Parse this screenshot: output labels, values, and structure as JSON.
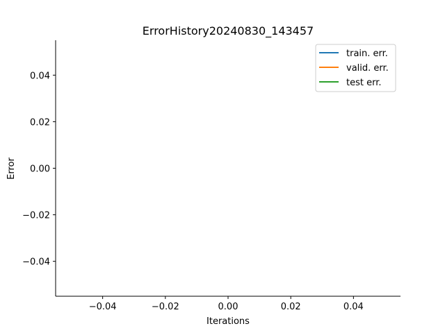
{
  "chart_data": {
    "type": "line",
    "title": "ErrorHistory20240830_143457",
    "xlabel": "Iterations",
    "ylabel": "Error",
    "xlim": [
      -0.055,
      0.055
    ],
    "ylim": [
      -0.055,
      0.055
    ],
    "x_ticks": [
      -0.04,
      -0.02,
      0.0,
      0.02,
      0.04
    ],
    "x_tick_labels": [
      "−0.04",
      "−0.02",
      "0.00",
      "0.02",
      "0.04"
    ],
    "y_ticks": [
      0.04,
      0.02,
      0.0,
      -0.02,
      -0.04
    ],
    "y_tick_labels": [
      "0.04",
      "0.02",
      "0.00",
      "−0.02",
      "−0.04"
    ],
    "grid": false,
    "legend_position": "top-right",
    "series": [
      {
        "name": "train. err.",
        "color": "#1f77b4",
        "x": [],
        "y": []
      },
      {
        "name": "valid. err.",
        "color": "#ff7f0e",
        "x": [],
        "y": []
      },
      {
        "name": "test err.",
        "color": "#2ca02c",
        "x": [],
        "y": []
      }
    ]
  }
}
